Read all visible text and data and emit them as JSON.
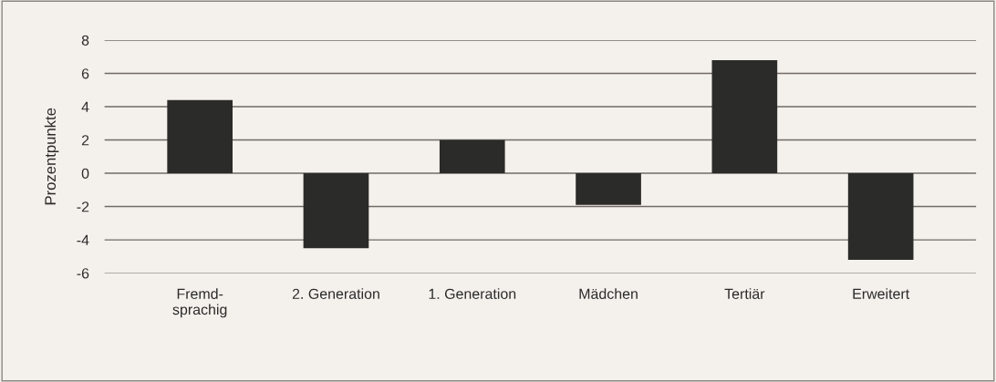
{
  "chart_data": {
    "type": "bar",
    "ylabel": "Prozentpunkte",
    "categories": [
      "Fremd-\nsprachig",
      "2. Generation",
      "1. Generation",
      "Mädchen",
      "Tertiär",
      "Erweitert"
    ],
    "values": [
      4.4,
      -4.5,
      2.0,
      -1.9,
      6.8,
      -5.2
    ],
    "color": "#2b2b29",
    "ylim": [
      -6,
      8
    ],
    "yticks": [
      -6,
      -4,
      -2,
      0,
      2,
      4,
      6,
      8
    ],
    "grid": "y",
    "legend": false
  }
}
